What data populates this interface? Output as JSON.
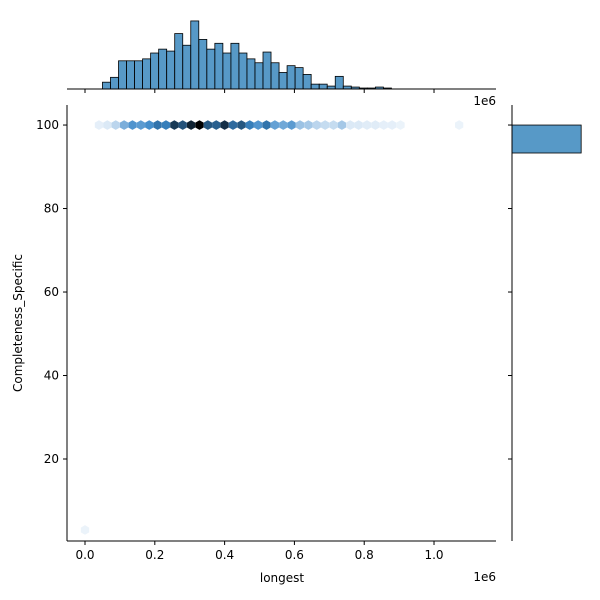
{
  "chart_data": {
    "type": "hexbin",
    "xlabel": "longest",
    "ylabel": "Completeness_Specific",
    "x_offset_label": "1e6",
    "xlim": [
      -51600,
      1177600
    ],
    "ylim": [
      0.36,
      104.8
    ],
    "xticks": [
      {
        "value": 0,
        "label": "0.0"
      },
      {
        "value": 200000,
        "label": "0.2"
      },
      {
        "value": 400000,
        "label": "0.4"
      },
      {
        "value": 600000,
        "label": "0.6"
      },
      {
        "value": 800000,
        "label": "0.8"
      },
      {
        "value": 1000000,
        "label": "1.0"
      }
    ],
    "yticks": [
      20,
      40,
      60,
      80,
      100
    ],
    "color": "#1f77b4",
    "hex_x": [
      40000,
      64000,
      88000,
      112000,
      136000,
      160000,
      184000,
      208000,
      232000,
      256000,
      280000,
      304000,
      328000,
      352000,
      376000,
      400000,
      424000,
      448000,
      472000,
      496000,
      520000,
      544000,
      568000,
      592000,
      616000,
      640000,
      664000,
      688000,
      712000,
      736000,
      760000,
      784000,
      808000,
      832000,
      856000,
      880000,
      904000,
      1072000,
      0
    ],
    "hex_y": [
      100,
      100,
      100,
      100,
      100,
      100,
      100,
      100,
      100,
      100,
      100,
      100,
      100,
      100,
      100,
      100,
      100,
      100,
      100,
      100,
      100,
      100,
      100,
      100,
      100,
      100,
      100,
      100,
      100,
      100,
      100,
      100,
      100,
      100,
      100,
      100,
      100,
      100,
      3
    ],
    "hex_counts": [
      2,
      4,
      10,
      22,
      30,
      28,
      32,
      38,
      36,
      50,
      45,
      55,
      62,
      44,
      42,
      52,
      40,
      44,
      36,
      30,
      38,
      26,
      24,
      28,
      16,
      14,
      10,
      8,
      8,
      14,
      4,
      4,
      3,
      3,
      2,
      2,
      1,
      1,
      1
    ],
    "top_hist": {
      "bins": [
        50000,
        73000,
        96000,
        119000,
        142000,
        165000,
        188000,
        211000,
        234000,
        257000,
        280000,
        303000,
        326000,
        349000,
        372000,
        395000,
        418000,
        441000,
        464000,
        487000,
        510000,
        533000,
        556000,
        579000,
        602000,
        625000,
        648000,
        671000,
        694000,
        717000,
        740000,
        763000,
        786000,
        809000,
        832000,
        855000,
        878000
      ],
      "counts": [
        7,
        12,
        29,
        29,
        29,
        31,
        37,
        41,
        39,
        57,
        45,
        70,
        51,
        41,
        47,
        37,
        47,
        37,
        31,
        27,
        38,
        27,
        17,
        24,
        22,
        15,
        5,
        5,
        3,
        13,
        3,
        2,
        1,
        1,
        2,
        1
      ],
      "ylim": [
        0,
        72
      ]
    },
    "right_hist": {
      "bins": [
        93.3,
        100
      ],
      "counts": [
        1000
      ],
      "xlim": [
        0,
        1200
      ]
    }
  }
}
